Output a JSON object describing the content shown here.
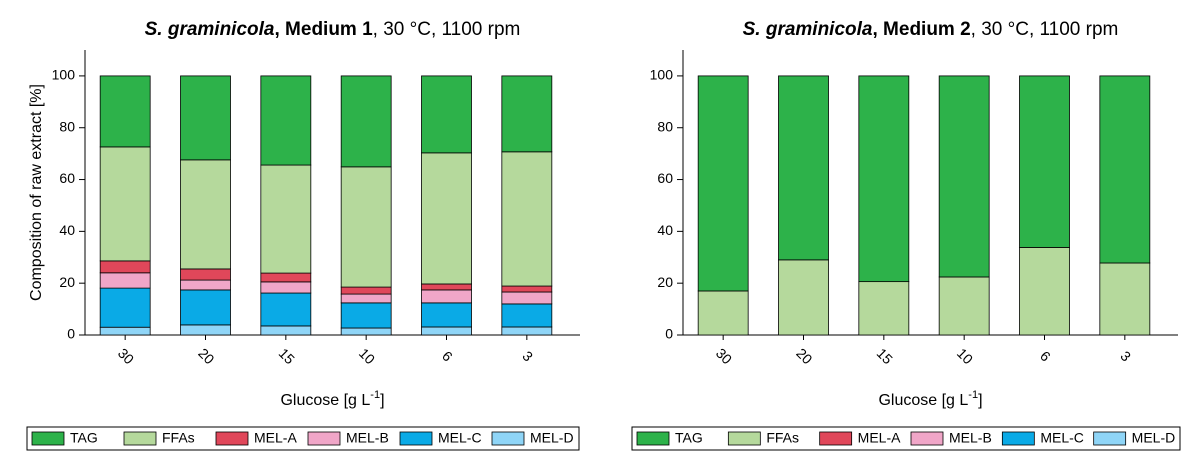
{
  "chart_data": [
    {
      "type": "stacked-bar",
      "title": [
        "S. graminicola",
        ", ",
        "Medium 1",
        ", 30 °C, 1100 rpm"
      ],
      "x_label": [
        "Glucose [g L",
        "-1",
        "]"
      ],
      "y_label": "Composition of raw extract [%]",
      "categories": [
        "30",
        "20",
        "15",
        "10",
        "6",
        "3"
      ],
      "ylim": [
        0,
        110
      ],
      "yticks": [
        0,
        20,
        40,
        60,
        80,
        100
      ],
      "series": [
        {
          "name": "MEL-D",
          "color": "#8fd5f7",
          "values": [
            3.0,
            3.9,
            3.5,
            2.7,
            3.1,
            3.1
          ]
        },
        {
          "name": "MEL-C",
          "color": "#0aaae6",
          "values": [
            15.1,
            13.5,
            12.7,
            9.7,
            9.3,
            8.9
          ]
        },
        {
          "name": "MEL-B",
          "color": "#f0a6c8",
          "values": [
            5.9,
            3.8,
            4.3,
            3.4,
            5.0,
            4.6
          ]
        },
        {
          "name": "MEL-A",
          "color": "#e0475a",
          "values": [
            4.6,
            4.3,
            3.4,
            2.7,
            2.3,
            2.3
          ]
        },
        {
          "name": "FFAs",
          "color": "#b5d99c",
          "values": [
            44.0,
            42.1,
            41.7,
            46.4,
            50.6,
            51.8
          ]
        },
        {
          "name": "TAG",
          "color": "#2db24a",
          "values": [
            27.4,
            32.4,
            34.4,
            35.1,
            29.7,
            29.3
          ]
        }
      ]
    },
    {
      "type": "stacked-bar",
      "title": [
        "S. graminicola",
        ", ",
        "Medium 2",
        ", 30 °C, 1100 rpm"
      ],
      "x_label": [
        "Glucose [g L",
        "-1",
        "]"
      ],
      "categories": [
        "30",
        "20",
        "15",
        "10",
        "6",
        "3"
      ],
      "ylim": [
        0,
        110
      ],
      "yticks": [
        0,
        20,
        40,
        60,
        80,
        100
      ],
      "series": [
        {
          "name": "MEL-D",
          "color": "#8fd5f7",
          "values": [
            0,
            0,
            0,
            0,
            0,
            0
          ]
        },
        {
          "name": "MEL-C",
          "color": "#0aaae6",
          "values": [
            0,
            0,
            0,
            0,
            0,
            0
          ]
        },
        {
          "name": "MEL-B",
          "color": "#f0a6c8",
          "values": [
            0,
            0,
            0,
            0,
            0,
            0
          ]
        },
        {
          "name": "MEL-A",
          "color": "#e0475a",
          "values": [
            0,
            0,
            0,
            0,
            0,
            0
          ]
        },
        {
          "name": "FFAs",
          "color": "#b5d99c",
          "values": [
            17.0,
            29.0,
            20.6,
            22.4,
            33.8,
            27.8
          ]
        },
        {
          "name": "TAG",
          "color": "#2db24a",
          "values": [
            83.0,
            71.0,
            79.4,
            77.6,
            66.2,
            72.2
          ]
        }
      ]
    }
  ]
}
